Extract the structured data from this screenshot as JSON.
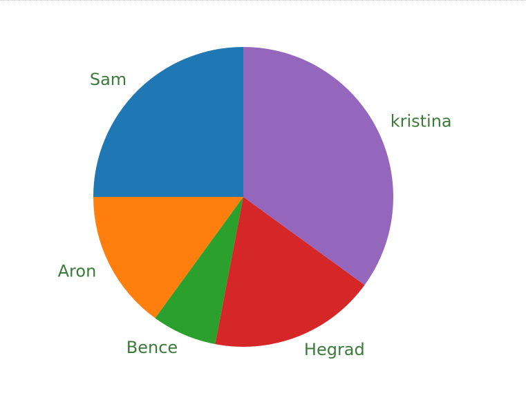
{
  "chart_data": {
    "type": "pie",
    "start_angle_deg": 90,
    "direction": "counterclockwise",
    "slices": [
      {
        "label": "Sam",
        "value": 25,
        "color": "#1f77b4"
      },
      {
        "label": "Aron",
        "value": 15,
        "color": "#ff7f0e"
      },
      {
        "label": "Bence",
        "value": 7,
        "color": "#2ca02c"
      },
      {
        "label": "Hegrad",
        "value": 18,
        "color": "#d62728"
      },
      {
        "label": "kristina",
        "value": 35,
        "color": "#9467bd"
      }
    ],
    "label_color": "#3a7a3a"
  }
}
